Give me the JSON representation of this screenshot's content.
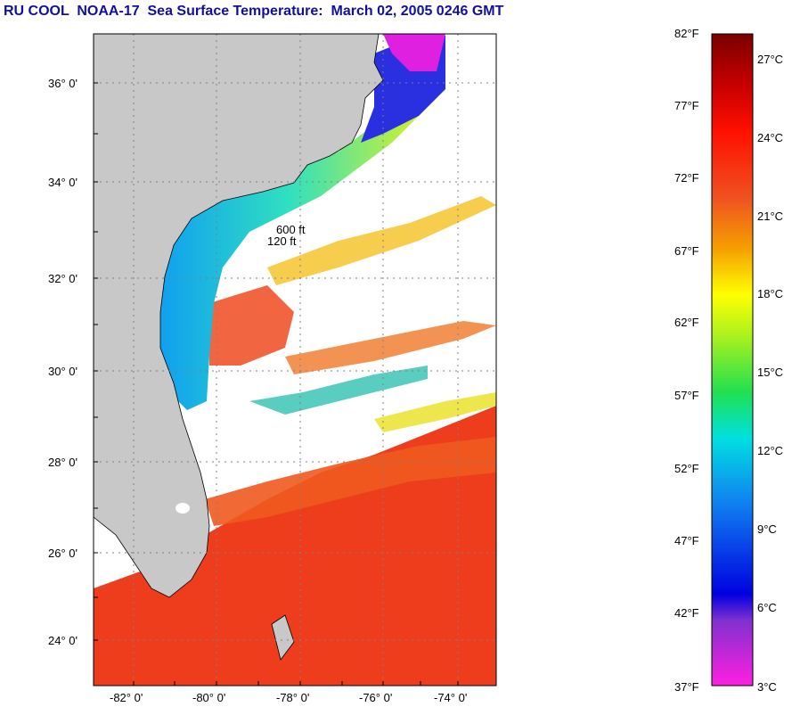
{
  "title": "RU COOL  NOAA-17  Sea Surface Temperature:  March 02, 2005 0246 GMT",
  "map": {
    "lat_labels": [
      "36° 0'",
      "34° 0'",
      "32° 0'",
      "30° 0'",
      "28° 0'",
      "26° 0'",
      "24° 0'"
    ],
    "lon_labels": [
      "-82° 0'",
      "-80° 0'",
      "-78° 0'",
      "-76° 0'",
      "-74° 0'"
    ],
    "isobath_labels": [
      "120 ft",
      "600 ft"
    ]
  },
  "colorbar": {
    "fahrenheit": [
      "82°F",
      "77°F",
      "72°F",
      "67°F",
      "62°F",
      "57°F",
      "52°F",
      "47°F",
      "42°F",
      "37°F"
    ],
    "celsius": [
      "27°C",
      "24°C",
      "21°C",
      "18°C",
      "15°C",
      "12°C",
      "9°C",
      "6°C",
      "3°C"
    ]
  }
}
